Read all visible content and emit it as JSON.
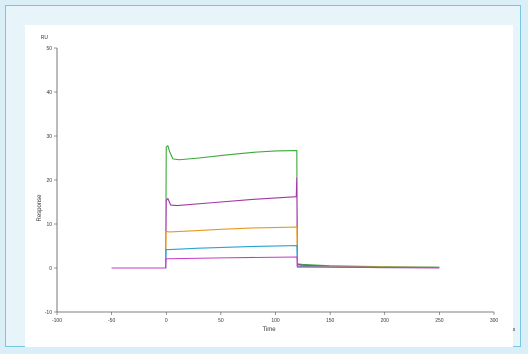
{
  "chart_data": {
    "type": "line",
    "title": "",
    "xlabel": "Time",
    "ylabel": "Response",
    "xunit": "s",
    "yunit": "RU",
    "xlim": [
      -100,
      300
    ],
    "ylim": [
      -10,
      50
    ],
    "xticks": [
      "-100",
      "-50",
      "0",
      "50",
      "100",
      "150",
      "200",
      "250",
      "300"
    ],
    "yticks": [
      "-10",
      "0",
      "10",
      "20",
      "30",
      "40",
      "50"
    ],
    "grid": false,
    "legend": "none",
    "series": [
      {
        "color": "#3aa83a",
        "x": [
          -50,
          -0.5,
          0,
          1.5,
          3,
          6,
          12,
          30,
          55,
          80,
          100,
          119.5,
          120,
          121,
          125,
          150,
          200,
          250
        ],
        "y": [
          0,
          0,
          27.5,
          27.8,
          26.5,
          24.8,
          24.6,
          25,
          25.7,
          26.3,
          26.6,
          26.7,
          1.2,
          0.9,
          0.8,
          0.5,
          0.3,
          0.2
        ]
      },
      {
        "color": "#a237a6",
        "x": [
          -50,
          -0.5,
          0,
          1.5,
          4,
          10,
          40,
          80,
          119,
          119.5,
          120,
          121,
          125,
          150,
          200,
          250
        ],
        "y": [
          0,
          0,
          15.3,
          15.8,
          14.3,
          14.2,
          14.8,
          15.6,
          16.2,
          20.5,
          0.9,
          0.8,
          0.6,
          0.4,
          0.2,
          0.1
        ]
      },
      {
        "color": "#e89a24",
        "x": [
          -50,
          -0.5,
          0,
          3,
          20,
          50,
          80,
          119.5,
          120,
          125,
          200,
          250
        ],
        "y": [
          0,
          0,
          8.3,
          8.2,
          8.4,
          8.8,
          9.1,
          9.3,
          0.5,
          0.4,
          0.2,
          0.1
        ]
      },
      {
        "color": "#2aa4d4",
        "x": [
          -50,
          -0.5,
          0,
          3,
          30,
          80,
          119.5,
          120,
          125,
          200,
          250
        ],
        "y": [
          0,
          0,
          4.2,
          4.2,
          4.5,
          4.9,
          5.1,
          0.3,
          0.3,
          0.1,
          0.1
        ]
      },
      {
        "color": "#c43cc4",
        "x": [
          -50,
          -0.5,
          0,
          3,
          50,
          119.5,
          120,
          125,
          200,
          250
        ],
        "y": [
          0,
          0,
          2.1,
          2.1,
          2.3,
          2.5,
          0.2,
          0.2,
          0.1,
          0
        ]
      }
    ]
  }
}
